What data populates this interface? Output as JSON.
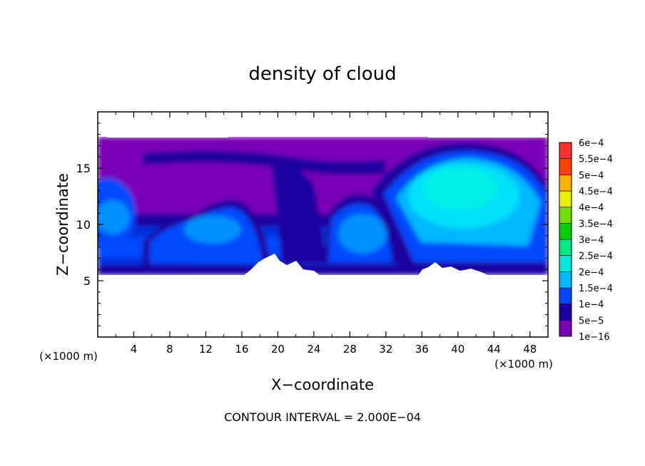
{
  "chart_data": {
    "type": "heatmap",
    "title": "density of cloud",
    "xlabel": "X−coordinate",
    "ylabel": "Z−coordinate",
    "x_unit": "(×1000 m)",
    "y_unit": "(×1000 m)",
    "xlim": [
      0,
      50
    ],
    "ylim": [
      0,
      20
    ],
    "x_ticks": [
      4,
      8,
      12,
      16,
      20,
      24,
      28,
      32,
      36,
      40,
      44,
      48
    ],
    "y_ticks": [
      5,
      10,
      15
    ],
    "footer": "CONTOUR INTERVAL = 2.000E−04",
    "colorbar": {
      "levels": [
        {
          "label": "1e−16",
          "color": "#7a00b8"
        },
        {
          "label": "5e−5",
          "color": "#1a00a0"
        },
        {
          "label": "1e−4",
          "color": "#0048ff"
        },
        {
          "label": "1.5e−4",
          "color": "#00b8ff"
        },
        {
          "label": "2e−4",
          "color": "#00e8d8"
        },
        {
          "label": "2.5e−4",
          "color": "#00e880"
        },
        {
          "label": "3e−4",
          "color": "#00d000"
        },
        {
          "label": "3.5e−4",
          "color": "#70dc00"
        },
        {
          "label": "4e−4",
          "color": "#e8f000"
        },
        {
          "label": "4.5e−4",
          "color": "#ffb000"
        },
        {
          "label": "5e−4",
          "color": "#ff4000"
        },
        {
          "label": "5.5e−4",
          "color": "#ff3030"
        },
        {
          "label": "6e−4",
          "color": "#ff9090"
        }
      ]
    }
  }
}
